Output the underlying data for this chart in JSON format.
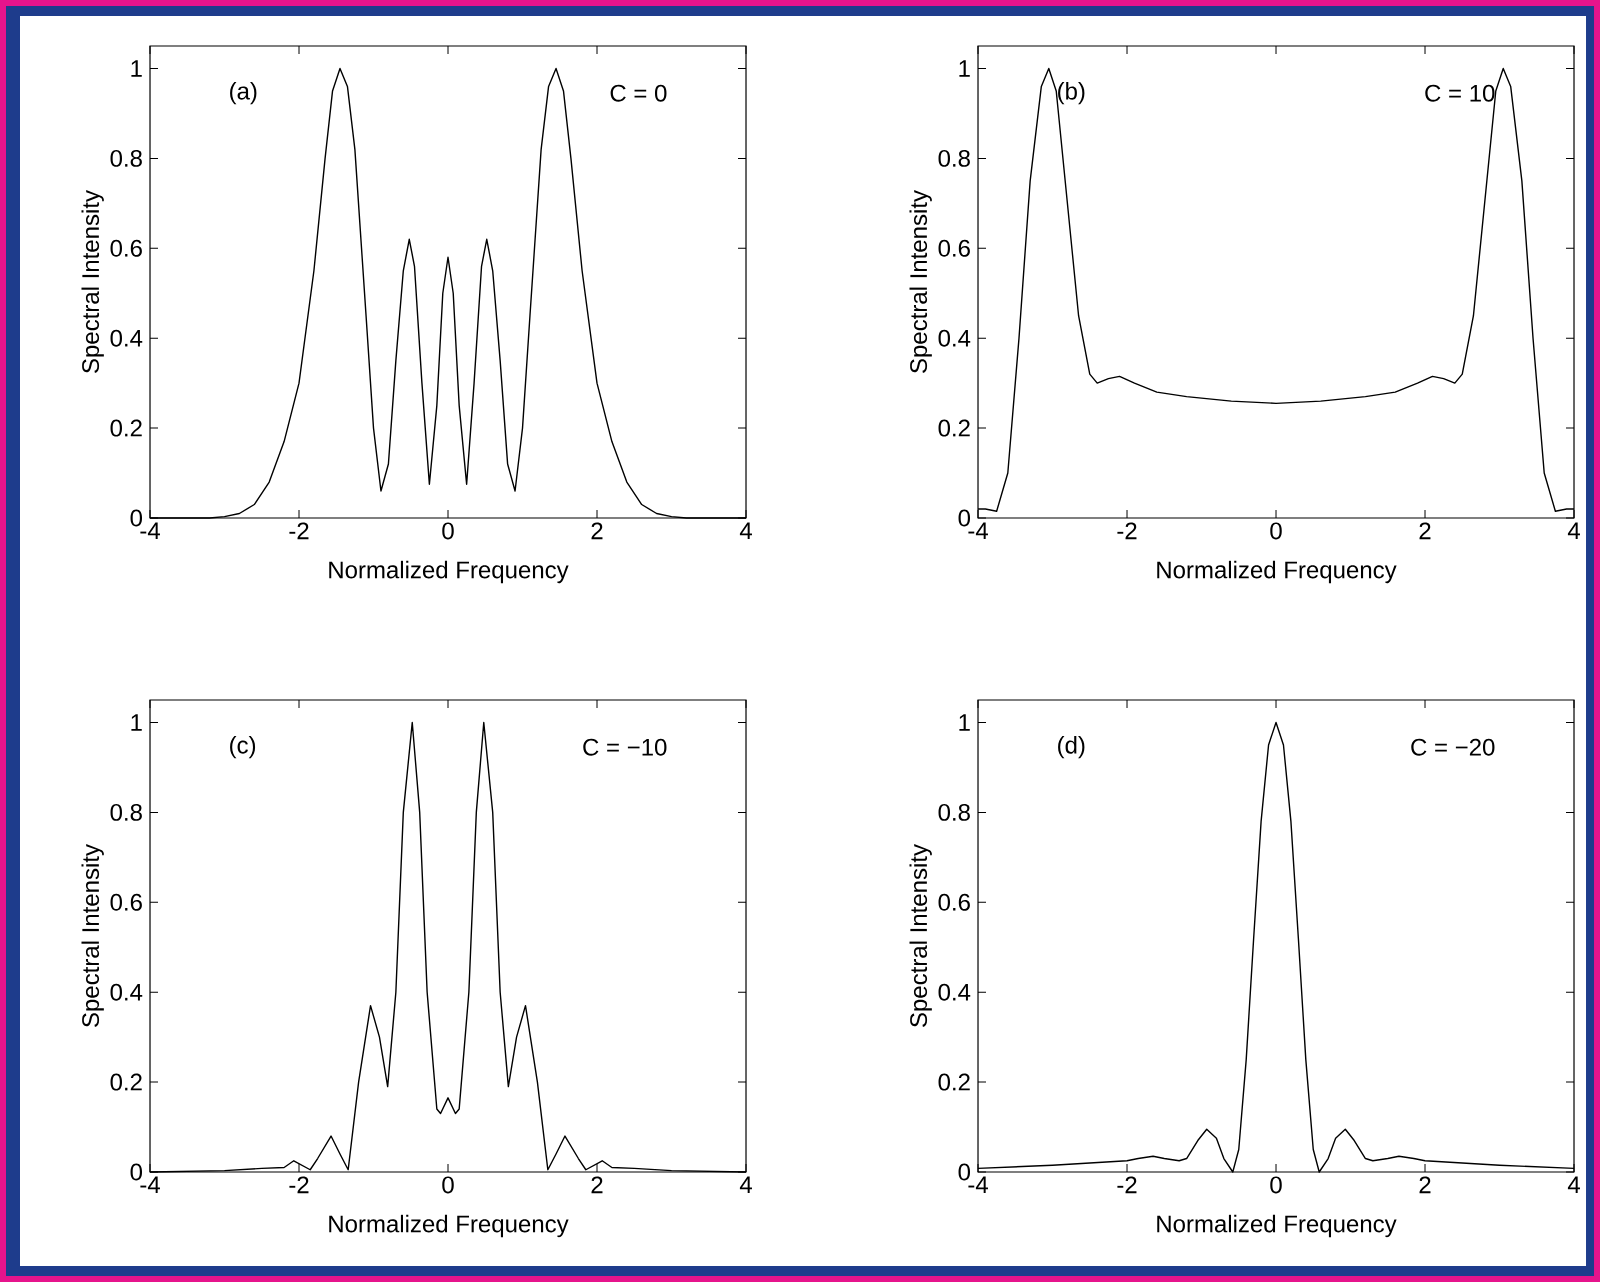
{
  "chart_data": [
    {
      "type": "line",
      "xlabel": "Normalized Frequency",
      "ylabel": "Spectral Intensity",
      "annotations": [
        "(a)",
        "C = 0"
      ],
      "xlim": [
        -4,
        4
      ],
      "ylim": [
        0,
        1.05
      ],
      "xticks": [
        -4,
        -2,
        0,
        2,
        4
      ],
      "yticks": [
        0,
        0.2,
        0.4,
        0.6,
        0.8,
        1
      ],
      "series": [
        {
          "color": "#000000",
          "x": [
            -4,
            -3.2,
            -3,
            -2.8,
            -2.6,
            -2.4,
            -2.2,
            -2.0,
            -1.8,
            -1.65,
            -1.55,
            -1.45,
            -1.35,
            -1.25,
            -1.1,
            -1.0,
            -0.9,
            -0.8,
            -0.7,
            -0.6,
            -0.52,
            -0.45,
            -0.35,
            -0.25,
            -0.15,
            -0.07,
            0,
            0.07,
            0.15,
            0.25,
            0.35,
            0.45,
            0.52,
            0.6,
            0.7,
            0.8,
            0.9,
            1.0,
            1.1,
            1.25,
            1.35,
            1.45,
            1.55,
            1.65,
            1.8,
            2.0,
            2.2,
            2.4,
            2.6,
            2.8,
            3,
            3.2,
            4
          ],
          "values": [
            0,
            0,
            0.003,
            0.01,
            0.03,
            0.08,
            0.17,
            0.3,
            0.55,
            0.8,
            0.95,
            1.0,
            0.96,
            0.82,
            0.45,
            0.2,
            0.06,
            0.12,
            0.35,
            0.55,
            0.62,
            0.56,
            0.3,
            0.075,
            0.25,
            0.5,
            0.58,
            0.5,
            0.25,
            0.075,
            0.3,
            0.56,
            0.62,
            0.55,
            0.35,
            0.12,
            0.06,
            0.2,
            0.45,
            0.82,
            0.96,
            1.0,
            0.95,
            0.8,
            0.55,
            0.3,
            0.17,
            0.08,
            0.03,
            0.01,
            0.003,
            0,
            0
          ]
        }
      ]
    },
    {
      "type": "line",
      "xlabel": "Normalized Frequency",
      "ylabel": "Spectral Intensity",
      "annotations": [
        "(b)",
        "C = 10"
      ],
      "xlim": [
        -4,
        4
      ],
      "ylim": [
        0,
        1.05
      ],
      "xticks": [
        -4,
        -2,
        0,
        2,
        4
      ],
      "yticks": [
        0,
        0.2,
        0.4,
        0.6,
        0.8,
        1
      ],
      "series": [
        {
          "color": "#000000",
          "x": [
            -4,
            -3.9,
            -3.75,
            -3.6,
            -3.45,
            -3.3,
            -3.15,
            -3.05,
            -2.95,
            -2.8,
            -2.65,
            -2.5,
            -2.4,
            -2.25,
            -2.1,
            -1.9,
            -1.6,
            -1.2,
            -0.6,
            0,
            0.6,
            1.2,
            1.6,
            1.9,
            2.1,
            2.25,
            2.4,
            2.5,
            2.65,
            2.8,
            2.95,
            3.05,
            3.15,
            3.3,
            3.45,
            3.6,
            3.75,
            3.9,
            4
          ],
          "values": [
            0.02,
            0.02,
            0.015,
            0.1,
            0.4,
            0.75,
            0.96,
            1.0,
            0.95,
            0.7,
            0.45,
            0.32,
            0.3,
            0.31,
            0.315,
            0.3,
            0.28,
            0.27,
            0.26,
            0.255,
            0.26,
            0.27,
            0.28,
            0.3,
            0.315,
            0.31,
            0.3,
            0.32,
            0.45,
            0.7,
            0.95,
            1.0,
            0.96,
            0.75,
            0.4,
            0.1,
            0.015,
            0.02,
            0.02
          ]
        }
      ]
    },
    {
      "type": "line",
      "xlabel": "Normalized Frequency",
      "ylabel": "Spectral Intensity",
      "annotations": [
        "(c)",
        "C = −10"
      ],
      "xlim": [
        -4,
        4
      ],
      "ylim": [
        0,
        1.05
      ],
      "xticks": [
        -4,
        -2,
        0,
        2,
        4
      ],
      "yticks": [
        0,
        0.2,
        0.4,
        0.6,
        0.8,
        1
      ],
      "series": [
        {
          "color": "#000000",
          "x": [
            -4,
            -3,
            -2.5,
            -2.2,
            -2.07,
            -1.85,
            -1.75,
            -1.57,
            -1.45,
            -1.34,
            -1.2,
            -1.04,
            -0.92,
            -0.81,
            -0.7,
            -0.6,
            -0.48,
            -0.38,
            -0.28,
            -0.15,
            -0.1,
            0,
            0.1,
            0.15,
            0.28,
            0.38,
            0.48,
            0.6,
            0.7,
            0.81,
            0.92,
            1.04,
            1.2,
            1.34,
            1.45,
            1.57,
            1.75,
            1.85,
            2.07,
            2.2,
            2.5,
            3,
            4
          ],
          "values": [
            0,
            0.003,
            0.008,
            0.01,
            0.025,
            0.005,
            0.03,
            0.08,
            0.04,
            0.005,
            0.2,
            0.37,
            0.3,
            0.19,
            0.4,
            0.8,
            1.0,
            0.8,
            0.4,
            0.14,
            0.13,
            0.165,
            0.13,
            0.14,
            0.4,
            0.8,
            1.0,
            0.8,
            0.4,
            0.19,
            0.3,
            0.37,
            0.2,
            0.005,
            0.04,
            0.08,
            0.03,
            0.005,
            0.025,
            0.01,
            0.008,
            0.003,
            0
          ]
        }
      ]
    },
    {
      "type": "line",
      "xlabel": "Normalized Frequency",
      "ylabel": "Spectral Intensity",
      "annotations": [
        "(d)",
        "C = −20"
      ],
      "xlim": [
        -4,
        4
      ],
      "ylim": [
        0,
        1.05
      ],
      "xticks": [
        -4,
        -2,
        0,
        2,
        4
      ],
      "yticks": [
        0,
        0.2,
        0.4,
        0.6,
        0.8,
        1
      ],
      "series": [
        {
          "color": "#000000",
          "x": [
            -4,
            -3,
            -2,
            -1.85,
            -1.65,
            -1.5,
            -1.3,
            -1.2,
            -1.05,
            -0.93,
            -0.8,
            -0.7,
            -0.58,
            -0.5,
            -0.4,
            -0.3,
            -0.2,
            -0.1,
            0,
            0.1,
            0.2,
            0.3,
            0.4,
            0.5,
            0.58,
            0.7,
            0.8,
            0.93,
            1.05,
            1.2,
            1.3,
            1.5,
            1.65,
            1.85,
            2,
            3,
            4
          ],
          "values": [
            0.008,
            0.015,
            0.025,
            0.03,
            0.035,
            0.03,
            0.025,
            0.03,
            0.07,
            0.095,
            0.075,
            0.03,
            0,
            0.05,
            0.25,
            0.52,
            0.78,
            0.95,
            1,
            0.95,
            0.78,
            0.52,
            0.25,
            0.05,
            0,
            0.03,
            0.075,
            0.095,
            0.07,
            0.03,
            0.025,
            0.03,
            0.035,
            0.03,
            0.025,
            0.015,
            0.008
          ]
        }
      ]
    }
  ]
}
